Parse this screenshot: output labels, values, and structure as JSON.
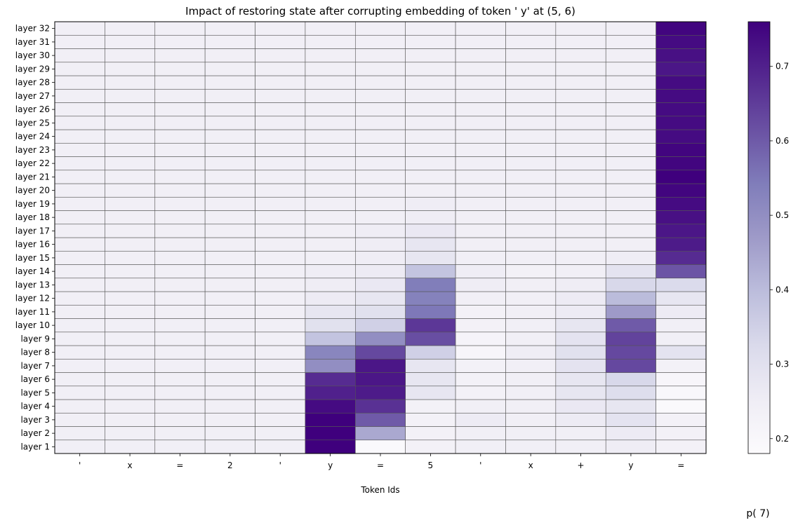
{
  "chart_data": {
    "type": "heatmap",
    "title": "Impact of restoring state after corrupting embedding of token ' y' at (5, 6)",
    "xlabel": "Token Ids",
    "colorbar_label": "p( 7)",
    "x_tick_labels": [
      "'",
      "x",
      "=",
      "2",
      "'",
      "y",
      "=",
      "5",
      "'",
      "x",
      "+",
      "y",
      "="
    ],
    "y_tick_labels": [
      "layer 1",
      "layer 2",
      "layer 3",
      "layer 4",
      "layer 5",
      "layer 6",
      "layer 7",
      "layer 8",
      "layer 9",
      "layer 10",
      "layer 11",
      "layer 12",
      "layer 13",
      "layer 14",
      "layer 15",
      "layer 16",
      "layer 17",
      "layer 18",
      "layer 19",
      "layer 20",
      "layer 21",
      "layer 22",
      "layer 23",
      "layer 24",
      "layer 25",
      "layer 26",
      "layer 27",
      "layer 28",
      "layer 29",
      "layer 30",
      "layer 31",
      "layer 32"
    ],
    "colorscale": "Purples",
    "vmin": 0.18,
    "vmax": 0.76,
    "colorbar_ticks": [
      0.2,
      0.3,
      0.4,
      0.5,
      0.6,
      0.7
    ],
    "values": [
      [
        0.24,
        0.24,
        0.24,
        0.24,
        0.24,
        0.76,
        0.19,
        0.23,
        0.24,
        0.24,
        0.24,
        0.25,
        0.23
      ],
      [
        0.24,
        0.24,
        0.24,
        0.24,
        0.24,
        0.76,
        0.44,
        0.23,
        0.24,
        0.24,
        0.24,
        0.26,
        0.23
      ],
      [
        0.24,
        0.24,
        0.24,
        0.24,
        0.24,
        0.76,
        0.6,
        0.23,
        0.26,
        0.24,
        0.26,
        0.29,
        0.23
      ],
      [
        0.24,
        0.24,
        0.24,
        0.24,
        0.24,
        0.74,
        0.67,
        0.23,
        0.24,
        0.24,
        0.27,
        0.28,
        0.19
      ],
      [
        0.24,
        0.24,
        0.24,
        0.24,
        0.24,
        0.7,
        0.71,
        0.28,
        0.23,
        0.24,
        0.28,
        0.31,
        0.2
      ],
      [
        0.24,
        0.24,
        0.24,
        0.24,
        0.24,
        0.68,
        0.72,
        0.28,
        0.23,
        0.24,
        0.28,
        0.33,
        0.21
      ],
      [
        0.24,
        0.24,
        0.24,
        0.24,
        0.24,
        0.5,
        0.72,
        0.28,
        0.23,
        0.24,
        0.29,
        0.63,
        0.23
      ],
      [
        0.24,
        0.24,
        0.24,
        0.24,
        0.24,
        0.52,
        0.63,
        0.35,
        0.21,
        0.25,
        0.3,
        0.63,
        0.29
      ],
      [
        0.24,
        0.24,
        0.24,
        0.24,
        0.24,
        0.38,
        0.5,
        0.62,
        0.22,
        0.24,
        0.29,
        0.64,
        0.24
      ],
      [
        0.24,
        0.24,
        0.24,
        0.24,
        0.24,
        0.3,
        0.35,
        0.66,
        0.23,
        0.24,
        0.28,
        0.6,
        0.24
      ],
      [
        0.24,
        0.24,
        0.24,
        0.24,
        0.24,
        0.28,
        0.3,
        0.55,
        0.23,
        0.24,
        0.26,
        0.47,
        0.26
      ],
      [
        0.24,
        0.24,
        0.24,
        0.24,
        0.24,
        0.26,
        0.28,
        0.53,
        0.24,
        0.24,
        0.26,
        0.4,
        0.28
      ],
      [
        0.24,
        0.24,
        0.24,
        0.24,
        0.24,
        0.25,
        0.27,
        0.54,
        0.25,
        0.24,
        0.25,
        0.33,
        0.32
      ],
      [
        0.24,
        0.24,
        0.24,
        0.24,
        0.24,
        0.25,
        0.26,
        0.38,
        0.25,
        0.23,
        0.24,
        0.29,
        0.61
      ],
      [
        0.24,
        0.24,
        0.24,
        0.24,
        0.24,
        0.24,
        0.25,
        0.28,
        0.24,
        0.24,
        0.24,
        0.25,
        0.68
      ],
      [
        0.24,
        0.24,
        0.24,
        0.24,
        0.24,
        0.24,
        0.25,
        0.28,
        0.24,
        0.24,
        0.24,
        0.24,
        0.71
      ],
      [
        0.24,
        0.24,
        0.24,
        0.24,
        0.24,
        0.24,
        0.25,
        0.27,
        0.24,
        0.24,
        0.24,
        0.24,
        0.72
      ],
      [
        0.24,
        0.24,
        0.24,
        0.24,
        0.24,
        0.24,
        0.24,
        0.25,
        0.24,
        0.24,
        0.24,
        0.24,
        0.73
      ],
      [
        0.24,
        0.24,
        0.24,
        0.24,
        0.24,
        0.24,
        0.24,
        0.25,
        0.24,
        0.24,
        0.24,
        0.24,
        0.74
      ],
      [
        0.24,
        0.24,
        0.24,
        0.24,
        0.24,
        0.24,
        0.24,
        0.24,
        0.24,
        0.24,
        0.24,
        0.24,
        0.75
      ],
      [
        0.24,
        0.24,
        0.24,
        0.24,
        0.24,
        0.24,
        0.24,
        0.24,
        0.24,
        0.24,
        0.24,
        0.24,
        0.76
      ],
      [
        0.24,
        0.24,
        0.24,
        0.24,
        0.24,
        0.24,
        0.24,
        0.24,
        0.24,
        0.24,
        0.24,
        0.24,
        0.75
      ],
      [
        0.24,
        0.24,
        0.24,
        0.24,
        0.24,
        0.24,
        0.24,
        0.24,
        0.24,
        0.24,
        0.24,
        0.24,
        0.75
      ],
      [
        0.24,
        0.24,
        0.24,
        0.24,
        0.24,
        0.24,
        0.24,
        0.24,
        0.24,
        0.24,
        0.24,
        0.24,
        0.74
      ],
      [
        0.24,
        0.24,
        0.24,
        0.24,
        0.24,
        0.24,
        0.24,
        0.24,
        0.24,
        0.24,
        0.24,
        0.24,
        0.74
      ],
      [
        0.24,
        0.24,
        0.24,
        0.24,
        0.24,
        0.24,
        0.24,
        0.24,
        0.24,
        0.24,
        0.24,
        0.24,
        0.74
      ],
      [
        0.24,
        0.24,
        0.24,
        0.24,
        0.24,
        0.24,
        0.24,
        0.24,
        0.24,
        0.24,
        0.24,
        0.24,
        0.74
      ],
      [
        0.24,
        0.24,
        0.24,
        0.24,
        0.24,
        0.24,
        0.24,
        0.24,
        0.24,
        0.24,
        0.24,
        0.24,
        0.74
      ],
      [
        0.24,
        0.24,
        0.24,
        0.24,
        0.24,
        0.24,
        0.24,
        0.24,
        0.24,
        0.24,
        0.24,
        0.24,
        0.72
      ],
      [
        0.24,
        0.24,
        0.24,
        0.24,
        0.24,
        0.24,
        0.24,
        0.24,
        0.24,
        0.24,
        0.24,
        0.24,
        0.73
      ],
      [
        0.24,
        0.24,
        0.24,
        0.24,
        0.24,
        0.24,
        0.24,
        0.24,
        0.24,
        0.24,
        0.24,
        0.24,
        0.74
      ],
      [
        0.24,
        0.24,
        0.24,
        0.24,
        0.24,
        0.24,
        0.24,
        0.24,
        0.24,
        0.24,
        0.24,
        0.24,
        0.75
      ]
    ]
  }
}
